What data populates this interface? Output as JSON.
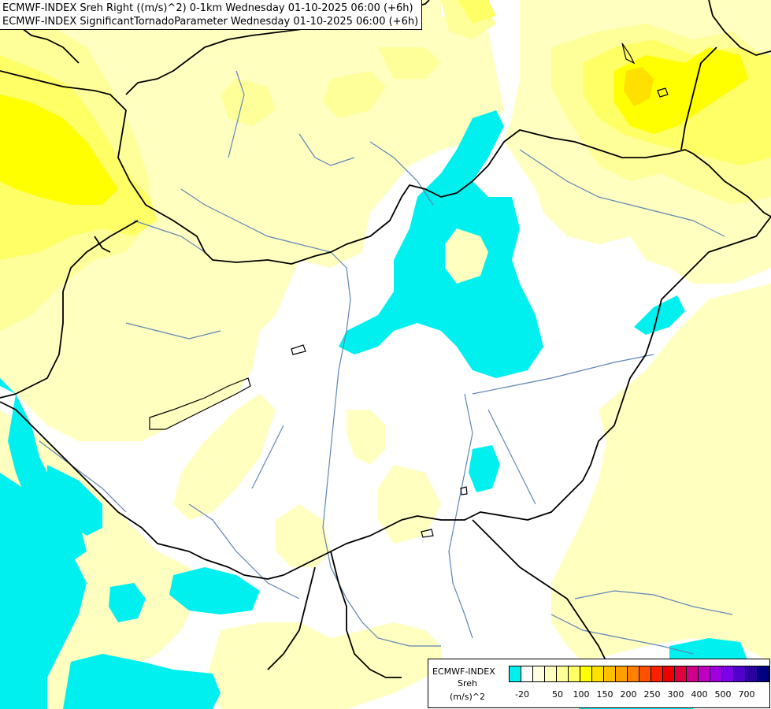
{
  "header": {
    "line1": "ECMWF-INDEX Sreh Right ((m/s)^2) 0-1km Wednesday 01-10-2025 06:00 (+6h)",
    "line2": "ECMWF-INDEX SignificantTornadoParameter Wednesday 01-10-2025 06:00 (+6h)"
  },
  "legend": {
    "title": "ECMWF-INDEX",
    "parameter": "Sreh",
    "unit": "(m/s)^2",
    "colors": [
      "#00f0f0",
      "#ffffff",
      "#ffffe0",
      "#ffffc0",
      "#ffff9a",
      "#ffff66",
      "#ffff00",
      "#ffe000",
      "#ffc000",
      "#ffa000",
      "#ff7f00",
      "#ff5000",
      "#ff2000",
      "#ee0000",
      "#e00040",
      "#d0008a",
      "#c000c0",
      "#a000e0",
      "#7c00e8",
      "#5000c8",
      "#2a00a0",
      "#000080"
    ],
    "ticks": [
      "-20",
      "50",
      "100",
      "150",
      "200",
      "250",
      "300",
      "400",
      "500",
      "700"
    ]
  },
  "map": {
    "fill_colors": {
      "cyan": "#00f0f0",
      "pale_yellow": "#ffffc0",
      "light_yellow": "#ffff9a",
      "yellow": "#ffff66",
      "bright_yellow": "#ffff00",
      "gold": "#ffe000"
    },
    "river_color": "#5f85b5",
    "border_color": "#000000"
  }
}
